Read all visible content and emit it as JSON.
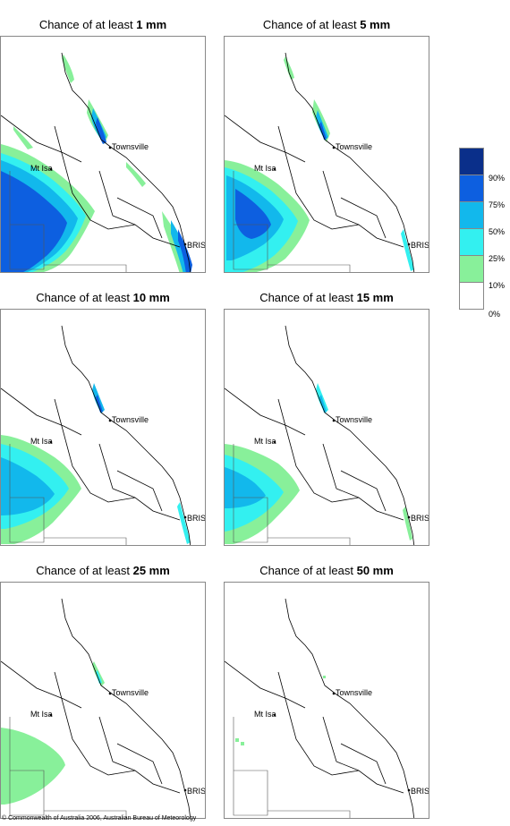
{
  "panels": [
    {
      "prefix": "Chance of at least ",
      "amount": "1 mm"
    },
    {
      "prefix": "Chance of at least ",
      "amount": "5 mm"
    },
    {
      "prefix": "Chance of at least ",
      "amount": "10 mm"
    },
    {
      "prefix": "Chance of at least ",
      "amount": "15 mm"
    },
    {
      "prefix": "Chance of at least ",
      "amount": "25 mm"
    },
    {
      "prefix": "Chance of at least ",
      "amount": "50 mm"
    }
  ],
  "places": {
    "townsville": "Townsville",
    "mt_isa": "Mt Isa",
    "brisbane": "BRIS"
  },
  "legend": {
    "labels": [
      "90%",
      "75%",
      "50%",
      "25%",
      "10%",
      "0%"
    ],
    "colors": [
      "#0a2f8a",
      "#0d5fe0",
      "#12b8ec",
      "#33f0f0",
      "#88f09a",
      "#ffffff"
    ]
  },
  "footer": "© Commonwealth of Australia 2006, Australian Bureau of Meteorology"
}
